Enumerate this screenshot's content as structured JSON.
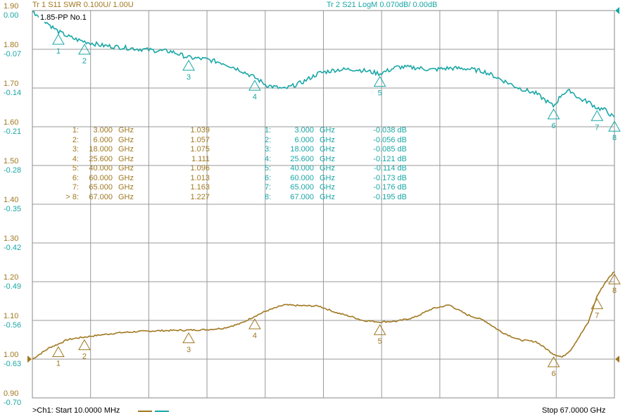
{
  "trace1": {
    "label": "Tr  1  S11 SWR 0.100U/  1.00U",
    "color": "#a07820"
  },
  "trace2": {
    "label": "Tr  2  S21 LogM 0.070dB/  0.00dB",
    "color": "#1aa6a6"
  },
  "title": "1.85-PP  No.1",
  "s11_axis": [
    "1.90",
    "1.80",
    "1.70",
    "1.60",
    "1.50",
    "1.40",
    "1.30",
    "1.20",
    "1.10",
    "1.00",
    "0.90"
  ],
  "s21_axis": [
    "0.00",
    "-0.07",
    "-0.14",
    "-0.21",
    "-0.28",
    "-0.35",
    "-0.42",
    "-0.49",
    "-0.56",
    "-0.63",
    "-0.70"
  ],
  "s11_markers": [
    {
      "id": "1:",
      "freq": "3.000",
      "unit": "GHz",
      "value": "1.039"
    },
    {
      "id": "2:",
      "freq": "6.000",
      "unit": "GHz",
      "value": "1.057"
    },
    {
      "id": "3:",
      "freq": "18.000",
      "unit": "GHz",
      "value": "1.075"
    },
    {
      "id": "4:",
      "freq": "25.600",
      "unit": "GHz",
      "value": "1.111"
    },
    {
      "id": "5:",
      "freq": "40.000",
      "unit": "GHz",
      "value": "1.096"
    },
    {
      "id": "6:",
      "freq": "60.000",
      "unit": "GHz",
      "value": "1.013"
    },
    {
      "id": "7:",
      "freq": "65.000",
      "unit": "GHz",
      "value": "1.163"
    },
    {
      "id": "> 8:",
      "freq": "67.000",
      "unit": "GHz",
      "value": "1.227"
    }
  ],
  "s21_markers": [
    {
      "id": "1:",
      "freq": "3.000",
      "unit": "GHz",
      "value": "-0.038 dB"
    },
    {
      "id": "2:",
      "freq": "6.000",
      "unit": "GHz",
      "value": "-0.056 dB"
    },
    {
      "id": "3:",
      "freq": "18.000",
      "unit": "GHz",
      "value": "-0.085 dB"
    },
    {
      "id": "4:",
      "freq": "25.600",
      "unit": "GHz",
      "value": "-0.121 dB"
    },
    {
      "id": "5:",
      "freq": "40.000",
      "unit": "GHz",
      "value": "-0.114 dB"
    },
    {
      "id": "6:",
      "freq": "60.000",
      "unit": "GHz",
      "value": "-0.173 dB"
    },
    {
      "id": "7:",
      "freq": "65.000",
      "unit": "GHz",
      "value": "-0.176 dB"
    },
    {
      "id": "8:",
      "freq": "67.000",
      "unit": "GHz",
      "value": "-0.195 dB"
    }
  ],
  "marker_numbers": [
    "1",
    "2",
    "3",
    "4",
    "5",
    "6",
    "7",
    "8"
  ],
  "footer": {
    "start": ">Ch1:  Start  10.0000 MHz",
    "stop": "Stop  67.0000 GHz"
  },
  "chart_data": {
    "type": "line",
    "x_range_ghz": [
      0.01,
      67
    ],
    "series": [
      {
        "name": "S11 SWR",
        "unit": "U",
        "x": [
          0.01,
          1,
          2,
          3,
          4,
          5,
          6,
          8,
          10,
          12,
          14,
          16,
          18,
          20,
          22,
          24,
          25.6,
          27,
          29,
          31,
          33,
          35,
          37,
          38,
          40,
          42,
          44,
          46,
          48,
          50,
          52,
          54,
          56,
          58,
          60,
          61,
          62,
          63,
          64,
          65,
          66,
          67
        ],
        "y": [
          1.0,
          1.015,
          1.03,
          1.039,
          1.05,
          1.054,
          1.057,
          1.063,
          1.068,
          1.071,
          1.073,
          1.074,
          1.075,
          1.076,
          1.08,
          1.092,
          1.111,
          1.125,
          1.14,
          1.138,
          1.137,
          1.12,
          1.108,
          1.1,
          1.096,
          1.098,
          1.108,
          1.13,
          1.14,
          1.115,
          1.1,
          1.07,
          1.05,
          1.045,
          1.013,
          1.005,
          1.025,
          1.06,
          1.095,
          1.163,
          1.2,
          1.227
        ]
      },
      {
        "name": "S21 LogM",
        "unit": "dB",
        "x": [
          0.01,
          1,
          2,
          3,
          4,
          5,
          6,
          8,
          10,
          12,
          14,
          16,
          18,
          20,
          22,
          24,
          25.6,
          27,
          29,
          31,
          33,
          35,
          37,
          38,
          40,
          42,
          44,
          46,
          48,
          50,
          52,
          54,
          56,
          58,
          60,
          61,
          62,
          63,
          64,
          65,
          66,
          67
        ],
        "y": [
          -0.002,
          -0.012,
          -0.026,
          -0.038,
          -0.046,
          -0.052,
          -0.056,
          -0.063,
          -0.066,
          -0.069,
          -0.072,
          -0.074,
          -0.085,
          -0.088,
          -0.095,
          -0.108,
          -0.121,
          -0.135,
          -0.142,
          -0.13,
          -0.113,
          -0.107,
          -0.106,
          -0.108,
          -0.114,
          -0.102,
          -0.103,
          -0.107,
          -0.104,
          -0.105,
          -0.11,
          -0.125,
          -0.14,
          -0.15,
          -0.173,
          -0.15,
          -0.145,
          -0.16,
          -0.165,
          -0.176,
          -0.18,
          -0.195
        ]
      }
    ],
    "markers_x_ghz": [
      3,
      6,
      18,
      25.6,
      40,
      60,
      65,
      67
    ],
    "grid": true,
    "legend": "bottom-left"
  }
}
